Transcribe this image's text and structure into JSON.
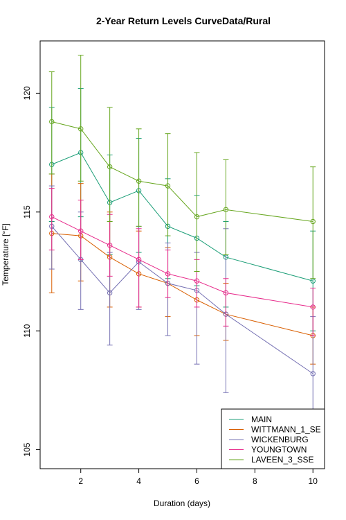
{
  "chart_data": {
    "type": "line",
    "title": "2-Year Return Levels CurveData/Rural",
    "xlabel": "Duration (days)",
    "ylabel": "Temperature [°F]",
    "x": [
      1,
      2,
      3,
      4,
      5,
      6,
      7,
      10
    ],
    "xlim": [
      0.6,
      10.4
    ],
    "ylim": [
      104.2,
      122.2
    ],
    "x_ticks": [
      2,
      4,
      6,
      8,
      10
    ],
    "y_ticks": [
      105,
      110,
      115,
      120
    ],
    "grid": false,
    "legend_position": "bottom-right",
    "series": [
      {
        "name": "MAIN",
        "color": "#1b9e77",
        "values": [
          117.0,
          117.5,
          115.4,
          115.9,
          114.4,
          113.9,
          113.1,
          112.1
        ],
        "lower": [
          114.6,
          114.8,
          113.2,
          113.3,
          112.2,
          111.9,
          111.0,
          110.0
        ],
        "upper": [
          119.4,
          120.2,
          117.4,
          118.1,
          116.4,
          115.7,
          114.6,
          114.2
        ]
      },
      {
        "name": "WITTMANN_1_SE",
        "color": "#d95f02",
        "values": [
          114.1,
          114.0,
          113.1,
          112.4,
          112.0,
          111.3,
          110.7,
          109.8
        ],
        "lower": [
          111.6,
          112.1,
          111.0,
          111.0,
          110.6,
          109.8,
          109.6,
          108.6
        ],
        "upper": [
          116.6,
          116.2,
          115.0,
          114.2,
          113.5,
          112.5,
          112.0,
          111.0
        ]
      },
      {
        "name": "WICKENBURG",
        "color": "#7570b3",
        "values": [
          114.4,
          113.0,
          111.6,
          112.9,
          112.0,
          111.7,
          110.7,
          108.2
        ],
        "lower": [
          112.6,
          110.9,
          109.4,
          110.9,
          109.8,
          108.6,
          107.4,
          105.9
        ],
        "upper": [
          116.1,
          115.0,
          113.3,
          114.4,
          113.7,
          113.3,
          114.3,
          110.6
        ]
      },
      {
        "name": "YOUNGTOWN",
        "color": "#e7298a",
        "values": [
          114.8,
          114.2,
          113.6,
          113.0,
          112.4,
          112.1,
          111.6,
          111.0
        ],
        "lower": [
          113.4,
          113.0,
          112.3,
          111.0,
          111.4,
          111.0,
          110.2,
          109.8
        ],
        "upper": [
          116.0,
          115.5,
          114.9,
          114.3,
          113.4,
          113.0,
          112.2,
          111.8
        ]
      },
      {
        "name": "LAVEEN_3_SSE",
        "color": "#66a61e",
        "values": [
          118.8,
          118.5,
          116.9,
          116.3,
          116.1,
          114.8,
          115.1,
          114.6
        ],
        "lower": [
          116.6,
          116.3,
          114.6,
          114.4,
          114.0,
          112.5,
          113.2,
          112.2
        ],
        "upper": [
          120.9,
          121.6,
          119.4,
          118.5,
          118.3,
          117.5,
          117.2,
          116.9
        ]
      }
    ]
  }
}
